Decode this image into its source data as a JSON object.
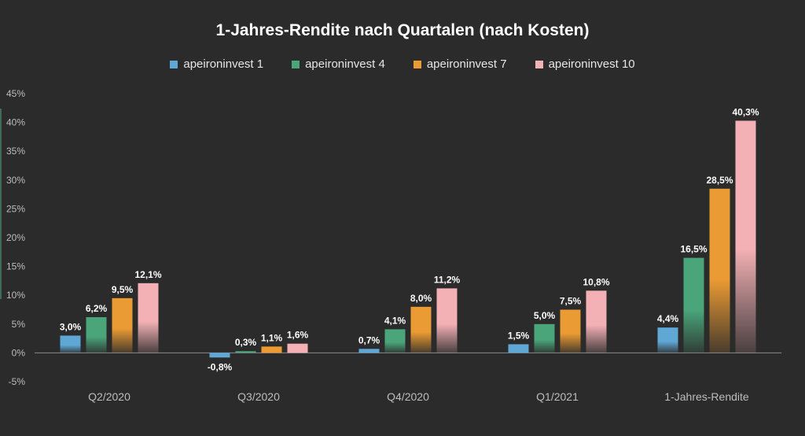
{
  "chart_data": {
    "type": "bar",
    "title": "1-Jahres-Rendite nach Quartalen (nach Kosten)",
    "categories": [
      "Q2/2020",
      "Q3/2020",
      "Q4/2020",
      "Q1/2021",
      "1-Jahres-Rendite"
    ],
    "series": [
      {
        "name": "apeironinvest 1",
        "color": "#5fa8d6",
        "values": [
          3.0,
          -0.8,
          0.7,
          1.5,
          4.4
        ],
        "labels": [
          "3,0%",
          "-0,8%",
          "0,7%",
          "1,5%",
          "4,4%"
        ]
      },
      {
        "name": "apeironinvest 4",
        "color": "#4aa57a",
        "values": [
          6.2,
          0.3,
          4.1,
          5.0,
          16.5
        ],
        "labels": [
          "6,2%",
          "0,3%",
          "4,1%",
          "5,0%",
          "16,5%"
        ]
      },
      {
        "name": "apeironinvest 7",
        "color": "#eb9b33",
        "values": [
          9.5,
          1.1,
          8.0,
          7.5,
          28.5
        ],
        "labels": [
          "9,5%",
          "1,1%",
          "8,0%",
          "7,5%",
          "28,5%"
        ]
      },
      {
        "name": "apeironinvest 10",
        "color": "#f4b1b5",
        "values": [
          12.1,
          1.6,
          11.2,
          10.8,
          40.3
        ],
        "labels": [
          "12,1%",
          "1,6%",
          "11,2%",
          "10,8%",
          "40,3%"
        ]
      }
    ],
    "ylim": [
      -5,
      45
    ],
    "yticks": [
      -5,
      0,
      5,
      10,
      15,
      20,
      25,
      30,
      35,
      40,
      45
    ],
    "ytick_labels": [
      "-5%",
      "0%",
      "5%",
      "10%",
      "15%",
      "20%",
      "25%",
      "30%",
      "35%",
      "40%",
      "45%"
    ],
    "legend_position": "top-center",
    "grid": false
  }
}
